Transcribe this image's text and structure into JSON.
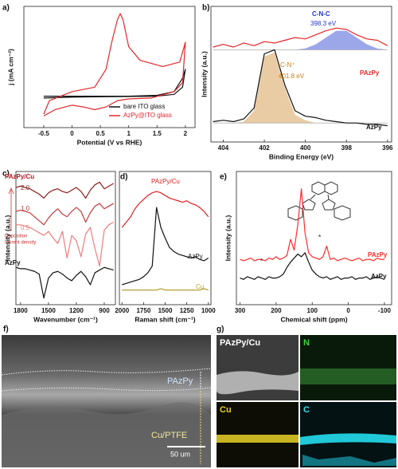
{
  "chart_data": [
    {
      "type": "line",
      "panel": "a)",
      "xlabel": "Potential (V vs RHE)",
      "ylabel": "j (mA cm⁻²)",
      "xlim": [
        -0.85,
        2.17
      ],
      "xticks": [
        -0.5,
        0.0,
        0.5,
        1.0,
        1.5,
        2.0
      ],
      "ylim": [
        -0.35,
        1.0
      ],
      "legend": "lower right",
      "series": [
        {
          "name": "bare ITO glass",
          "color": "#111111",
          "x": [
            -0.5,
            0,
            1,
            1.5,
            1.8,
            1.95,
            2.0,
            1.95,
            1.8,
            1.5,
            0,
            -0.5
          ],
          "values": [
            0,
            0,
            0,
            0.01,
            0.05,
            0.2,
            0.3,
            0.1,
            0.02,
            0,
            -0.01,
            -0.02
          ]
        },
        {
          "name": "AzPy@ITO glass",
          "color": "#e3262b",
          "x": [
            -0.5,
            -0.4,
            0,
            0.4,
            0.6,
            0.7,
            0.8,
            0.85,
            0.9,
            1.0,
            1.2,
            1.6,
            1.9,
            2.0,
            1.95,
            1.8,
            1.4,
            1.0,
            0.8,
            0.6,
            0.4,
            0.2,
            0,
            -0.3,
            -0.5
          ],
          "values": [
            -0.2,
            -0.05,
            0.05,
            0.1,
            0.3,
            0.6,
            0.85,
            0.92,
            0.85,
            0.55,
            0.4,
            0.33,
            0.38,
            0.6,
            0.15,
            0.05,
            -0.02,
            -0.03,
            -0.05,
            -0.12,
            -0.15,
            -0.12,
            -0.1,
            -0.15,
            -0.22
          ]
        }
      ]
    },
    {
      "type": "line",
      "panel": "b)",
      "xlabel": "Binding Energy (eV)",
      "ylabel": "Intensity (a.u.)",
      "xlim": [
        404.6,
        395.8
      ],
      "xticks": [
        404,
        402,
        400,
        398,
        396
      ],
      "ylim": [
        0,
        10
      ],
      "x": [
        404.5,
        404,
        403.5,
        403,
        402.5,
        402,
        401.5,
        401,
        400.5,
        400,
        399.5,
        399,
        398.5,
        398,
        397.5,
        397,
        396.5,
        396
      ],
      "fills": [
        {
          "color": "#4a5fd8",
          "base": 6.8,
          "values": [
            6.8,
            6.8,
            6.8,
            6.8,
            6.8,
            6.8,
            6.8,
            6.8,
            6.8,
            6.9,
            7.2,
            7.7,
            8.2,
            8.2,
            7.7,
            7.2,
            6.9,
            6.8
          ]
        },
        {
          "color": "#d9a35a",
          "base": 1.4,
          "values": [
            1.4,
            1.4,
            1.4,
            1.5,
            2.3,
            6.3,
            6.6,
            4.0,
            2.0,
            1.6,
            1.4,
            1.4,
            1.4,
            1.4,
            1.4,
            1.4,
            1.4,
            1.4
          ]
        }
      ],
      "series": [
        {
          "name": "PAzPy",
          "color": "#e8262a",
          "values": [
            7.0,
            7.2,
            7.0,
            7.3,
            7.1,
            7.4,
            7.3,
            7.5,
            7.7,
            7.6,
            7.9,
            8.2,
            8.4,
            8.3,
            7.9,
            7.6,
            7.5,
            7.1
          ]
        },
        {
          "name": "AzPy",
          "color": "#111111",
          "values": [
            1.5,
            1.6,
            1.5,
            1.7,
            2.5,
            6.5,
            6.8,
            4.2,
            2.3,
            1.9,
            1.8,
            1.6,
            1.5,
            1.4,
            1.4,
            1.3,
            1.3,
            1.2
          ]
        }
      ],
      "annotations": [
        {
          "text": "C-N-C",
          "color": "#2233cc"
        },
        {
          "text": "398.3 eV",
          "color": "#2233cc"
        },
        {
          "text": "C-N⁺",
          "color": "#d07a10"
        },
        {
          "text": "401.8 eV",
          "color": "#d07a10"
        }
      ]
    },
    {
      "type": "line",
      "panel": "c)",
      "xlabel": "Wavenumber (cm⁻¹)",
      "ylabel": "Intensity (a.u.)",
      "xlim": [
        1850,
        780
      ],
      "xticks": [
        1800,
        1500,
        1200,
        900
      ],
      "ylim": [
        0,
        10
      ],
      "x": [
        1850,
        1800,
        1750,
        1700,
        1650,
        1600,
        1550,
        1500,
        1450,
        1400,
        1350,
        1300,
        1250,
        1200,
        1150,
        1100,
        1050,
        1000,
        950,
        900,
        850,
        800
      ],
      "series": [
        {
          "name": "2.0",
          "color": "#8b1c1c",
          "values": [
            8.8,
            8.9,
            8.8,
            8.7,
            8.5,
            8.3,
            8.0,
            8.4,
            8.6,
            8.7,
            8.5,
            8.4,
            8.6,
            8.8,
            8.5,
            8.0,
            8.6,
            9.0,
            9.2,
            8.7,
            8.9,
            9.1
          ]
        },
        {
          "name": "1.0",
          "color": "#c73a3a",
          "values": [
            7.0,
            7.1,
            7.0,
            6.9,
            6.6,
            6.3,
            6.0,
            6.5,
            6.9,
            7.2,
            6.8,
            6.6,
            7.0,
            7.3,
            7.0,
            6.2,
            6.9,
            7.4,
            7.6,
            7.2,
            7.4,
            7.6
          ]
        },
        {
          "name": "0.5",
          "color": "#f07c7c",
          "values": [
            6.0,
            6.0,
            5.9,
            5.8,
            5.6,
            5.4,
            5.2,
            5.5,
            5.0,
            4.6,
            5.5,
            3.5,
            5.2,
            4.8,
            3.6,
            5.3,
            5.8,
            4.2,
            2.9,
            5.6,
            6.0,
            6.2
          ]
        },
        {
          "name": "AzPy",
          "color": "#111111",
          "values": [
            2.8,
            2.7,
            2.7,
            2.6,
            2.5,
            2.3,
            0.5,
            2.0,
            2.4,
            2.5,
            2.3,
            2.0,
            1.8,
            2.2,
            2.5,
            2.1,
            1.5,
            2.4,
            2.6,
            2.8,
            2.7,
            2.6
          ]
        }
      ],
      "annotations": [
        {
          "text": "PAzPy/Cu",
          "color": "#c0161c"
        },
        {
          "text": "Deposition",
          "color": "#d03030"
        },
        {
          "text": "current density",
          "color": "#d03030"
        }
      ]
    },
    {
      "type": "line",
      "panel": "d)",
      "xlabel": "Raman shift (cm⁻¹)",
      "xlim": [
        2030,
        970
      ],
      "xticks": [
        2000,
        1750,
        1500,
        1250,
        1000
      ],
      "ylim": [
        0,
        10
      ],
      "x": [
        2000,
        1950,
        1900,
        1850,
        1800,
        1750,
        1700,
        1650,
        1600,
        1550,
        1500,
        1450,
        1400,
        1350,
        1300,
        1250,
        1200,
        1150,
        1100,
        1050,
        1000
      ],
      "series": [
        {
          "name": "PAzPy/Cu",
          "color": "#e02020",
          "values": [
            5.8,
            6.2,
            6.6,
            7.2,
            7.6,
            7.9,
            8.2,
            8.4,
            8.5,
            8.4,
            8.2,
            8.0,
            7.9,
            7.8,
            7.7,
            7.8,
            7.6,
            7.5,
            7.3,
            7.0,
            6.6
          ]
        },
        {
          "name": "AzPy",
          "color": "#111111",
          "values": [
            1.5,
            1.6,
            1.7,
            1.8,
            1.9,
            2.1,
            2.4,
            2.9,
            7.3,
            5.8,
            5.0,
            4.3,
            4.0,
            3.8,
            3.7,
            3.6,
            3.5,
            3.6,
            3.4,
            3.3,
            3.5
          ]
        },
        {
          "name": "Cu",
          "color": "#b8a030",
          "values": [
            1.1,
            1.1,
            1.1,
            1.1,
            1.1,
            1.1,
            1.1,
            1.1,
            1.1,
            1.2,
            1.1,
            1.1,
            1.1,
            1.1,
            1.1,
            1.1,
            1.1,
            1.1,
            1.1,
            1.2,
            1.1
          ]
        }
      ]
    },
    {
      "type": "line",
      "panel": "e)",
      "xlabel": "Chemical shift (ppm)",
      "ylabel": "Intensity (a.u.)",
      "xlim": [
        310,
        -120
      ],
      "xticks": [
        300,
        200,
        100,
        0,
        -100
      ],
      "ylim": [
        0,
        10
      ],
      "x": [
        300,
        290,
        280,
        270,
        260,
        250,
        240,
        230,
        220,
        210,
        200,
        190,
        180,
        170,
        160,
        150,
        140,
        130,
        120,
        110,
        100,
        90,
        80,
        70,
        60,
        50,
        40,
        30,
        20,
        10,
        0,
        -10,
        -20,
        -30,
        -40,
        -50,
        -60,
        -70,
        -80,
        -90,
        -100
      ],
      "series": [
        {
          "name": "PAzPy",
          "color": "#ff2a2a",
          "values": [
            3.4,
            3.3,
            3.4,
            3.5,
            3.3,
            3.4,
            3.4,
            3.3,
            3.5,
            3.4,
            3.6,
            3.4,
            3.5,
            3.7,
            4.9,
            4.1,
            6.0,
            8.7,
            5.4,
            3.9,
            3.6,
            3.5,
            3.4,
            3.6,
            4.4,
            3.4,
            3.5,
            3.3,
            3.4,
            3.5,
            3.4,
            3.3,
            3.4,
            3.5,
            3.3,
            3.4,
            3.4,
            3.3,
            3.5,
            3.4,
            3.4
          ]
        },
        {
          "name": "AzPy",
          "color": "#111111",
          "values": [
            2.0,
            1.9,
            2.1,
            2.0,
            1.9,
            2.1,
            2.0,
            1.9,
            2.1,
            2.0,
            2.0,
            2.1,
            2.3,
            2.8,
            3.2,
            3.5,
            3.8,
            3.6,
            3.9,
            3.2,
            2.6,
            2.3,
            2.1,
            2.0,
            2.1,
            1.9,
            2.0,
            2.1,
            1.9,
            2.0,
            2.0,
            2.1,
            1.9,
            2.0,
            2.0,
            2.1,
            1.9,
            2.0,
            2.1,
            2.0,
            1.9
          ]
        }
      ],
      "annotations": [
        {
          "text": "*",
          "color": "#555555"
        },
        {
          "text": "*",
          "color": "#555555"
        }
      ]
    }
  ],
  "sem": {
    "panel": "f)",
    "labels": [
      "PAzPy",
      "Cu/PTFE"
    ],
    "scale_bar": "50 um"
  },
  "eds": {
    "panel": "g)",
    "tiles": [
      "PAzPy/Cu",
      "N",
      "Cu",
      "C"
    ]
  }
}
